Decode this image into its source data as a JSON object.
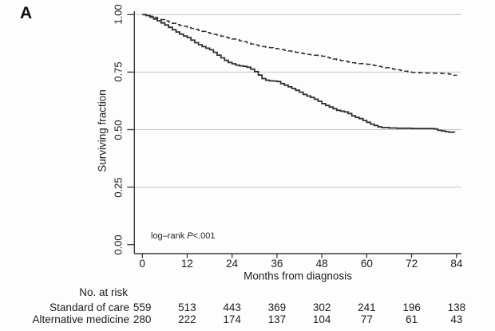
{
  "panel_label": "A",
  "chart_data": {
    "type": "line",
    "subtype": "kaplan-meier-step",
    "title": "",
    "xlabel": "Months from diagnosis",
    "ylabel": "Surviving fraction",
    "xlim": [
      0,
      84
    ],
    "ylim": [
      0,
      1
    ],
    "grid": "horizontal",
    "x_ticks": [
      "0",
      "12",
      "24",
      "36",
      "48",
      "60",
      "72",
      "84"
    ],
    "x_tick_values": [
      0,
      12,
      24,
      36,
      48,
      60,
      72,
      84
    ],
    "y_ticks": [
      "1.00",
      "0.75",
      "0.50",
      "0.25",
      "0.00"
    ],
    "y_tick_values": [
      1.0,
      0.75,
      0.5,
      0.25,
      0.0
    ],
    "y_grid_values": [
      1.0,
      0.75,
      0.5,
      0.25
    ],
    "annotation": {
      "prefix": "log–rank ",
      "italic": "P",
      "suffix": "<.001"
    },
    "colors": {
      "curve": "#2f2f2f",
      "grid": "#c4c4c4",
      "axis": "#3a3a3a",
      "text": "#1c1c1c"
    },
    "series": [
      {
        "name": "Standard of care",
        "style": "dashed",
        "points": [
          [
            0,
            1.0
          ],
          [
            1,
            0.997
          ],
          [
            2,
            0.993
          ],
          [
            3,
            0.988
          ],
          [
            4,
            0.983
          ],
          [
            5,
            0.978
          ],
          [
            6,
            0.973
          ],
          [
            7,
            0.968
          ],
          [
            8,
            0.962
          ],
          [
            9,
            0.957
          ],
          [
            10,
            0.953
          ],
          [
            11,
            0.949
          ],
          [
            12,
            0.944
          ],
          [
            13,
            0.94
          ],
          [
            14,
            0.936
          ],
          [
            15,
            0.931
          ],
          [
            16,
            0.927
          ],
          [
            17,
            0.922
          ],
          [
            18,
            0.918
          ],
          [
            19,
            0.914
          ],
          [
            20,
            0.91
          ],
          [
            21,
            0.906
          ],
          [
            22,
            0.902
          ],
          [
            23,
            0.898
          ],
          [
            24,
            0.894
          ],
          [
            25,
            0.89
          ],
          [
            26,
            0.886
          ],
          [
            27,
            0.882
          ],
          [
            28,
            0.877
          ],
          [
            29,
            0.872
          ],
          [
            30,
            0.868
          ],
          [
            31,
            0.864
          ],
          [
            32,
            0.861
          ],
          [
            33,
            0.858
          ],
          [
            34,
            0.856
          ],
          [
            35,
            0.853
          ],
          [
            36,
            0.851
          ],
          [
            37,
            0.848
          ],
          [
            38,
            0.845
          ],
          [
            39,
            0.842
          ],
          [
            40,
            0.839
          ],
          [
            41,
            0.836
          ],
          [
            42,
            0.833
          ],
          [
            43,
            0.83
          ],
          [
            44,
            0.827
          ],
          [
            45,
            0.825
          ],
          [
            46,
            0.823
          ],
          [
            47,
            0.821
          ],
          [
            48,
            0.819
          ],
          [
            49,
            0.815
          ],
          [
            50,
            0.811
          ],
          [
            51,
            0.807
          ],
          [
            52,
            0.803
          ],
          [
            53,
            0.8
          ],
          [
            54,
            0.797
          ],
          [
            55,
            0.794
          ],
          [
            56,
            0.791
          ],
          [
            57,
            0.789
          ],
          [
            58,
            0.787
          ],
          [
            59,
            0.786
          ],
          [
            60,
            0.784
          ],
          [
            61,
            0.781
          ],
          [
            62,
            0.778
          ],
          [
            63,
            0.775
          ],
          [
            64,
            0.772
          ],
          [
            65,
            0.769
          ],
          [
            66,
            0.766
          ],
          [
            67,
            0.763
          ],
          [
            68,
            0.76
          ],
          [
            69,
            0.757
          ],
          [
            70,
            0.754
          ],
          [
            71,
            0.751
          ],
          [
            72,
            0.749
          ],
          [
            74,
            0.747
          ],
          [
            76,
            0.746
          ],
          [
            78,
            0.745
          ],
          [
            80,
            0.744
          ],
          [
            82,
            0.741
          ],
          [
            83,
            0.736
          ],
          [
            84,
            0.734
          ]
        ]
      },
      {
        "name": "Alternative medicine",
        "style": "solid",
        "points": [
          [
            0,
            1.0
          ],
          [
            1,
            0.996
          ],
          [
            2,
            0.989
          ],
          [
            3,
            0.981
          ],
          [
            4,
            0.973
          ],
          [
            5,
            0.964
          ],
          [
            6,
            0.955
          ],
          [
            7,
            0.945
          ],
          [
            8,
            0.934
          ],
          [
            9,
            0.924
          ],
          [
            10,
            0.915
          ],
          [
            11,
            0.907
          ],
          [
            12,
            0.9
          ],
          [
            13,
            0.889
          ],
          [
            14,
            0.878
          ],
          [
            15,
            0.869
          ],
          [
            16,
            0.861
          ],
          [
            17,
            0.854
          ],
          [
            18,
            0.847
          ],
          [
            19,
            0.836
          ],
          [
            20,
            0.824
          ],
          [
            21,
            0.812
          ],
          [
            22,
            0.801
          ],
          [
            23,
            0.792
          ],
          [
            24,
            0.786
          ],
          [
            25,
            0.78
          ],
          [
            26,
            0.777
          ],
          [
            27,
            0.775
          ],
          [
            28,
            0.771
          ],
          [
            29,
            0.763
          ],
          [
            30,
            0.752
          ],
          [
            31,
            0.737
          ],
          [
            32,
            0.722
          ],
          [
            33,
            0.715
          ],
          [
            34,
            0.712
          ],
          [
            35,
            0.711
          ],
          [
            36,
            0.709
          ],
          [
            37,
            0.7
          ],
          [
            38,
            0.693
          ],
          [
            39,
            0.686
          ],
          [
            40,
            0.679
          ],
          [
            41,
            0.671
          ],
          [
            42,
            0.663
          ],
          [
            43,
            0.653
          ],
          [
            44,
            0.646
          ],
          [
            45,
            0.64
          ],
          [
            46,
            0.632
          ],
          [
            47,
            0.623
          ],
          [
            48,
            0.613
          ],
          [
            49,
            0.605
          ],
          [
            50,
            0.598
          ],
          [
            51,
            0.591
          ],
          [
            52,
            0.584
          ],
          [
            53,
            0.58
          ],
          [
            54,
            0.577
          ],
          [
            55,
            0.57
          ],
          [
            56,
            0.56
          ],
          [
            57,
            0.553
          ],
          [
            58,
            0.548
          ],
          [
            59,
            0.54
          ],
          [
            60,
            0.532
          ],
          [
            61,
            0.524
          ],
          [
            62,
            0.518
          ],
          [
            63,
            0.512
          ],
          [
            64,
            0.509
          ],
          [
            66,
            0.507
          ],
          [
            68,
            0.506
          ],
          [
            70,
            0.506
          ],
          [
            72,
            0.505
          ],
          [
            74,
            0.505
          ],
          [
            76,
            0.505
          ],
          [
            78,
            0.503
          ],
          [
            79,
            0.497
          ],
          [
            80,
            0.494
          ],
          [
            81,
            0.491
          ],
          [
            82,
            0.489
          ],
          [
            83.5,
            0.488
          ]
        ]
      }
    ]
  },
  "risk_table": {
    "title": "No. at risk",
    "rows": [
      {
        "label": "Standard of care",
        "values": [
          "559",
          "513",
          "443",
          "369",
          "302",
          "241",
          "196",
          "138"
        ]
      },
      {
        "label": "Alternative medicine",
        "values": [
          "280",
          "222",
          "174",
          "137",
          "104",
          "77",
          "61",
          "43"
        ]
      }
    ]
  }
}
